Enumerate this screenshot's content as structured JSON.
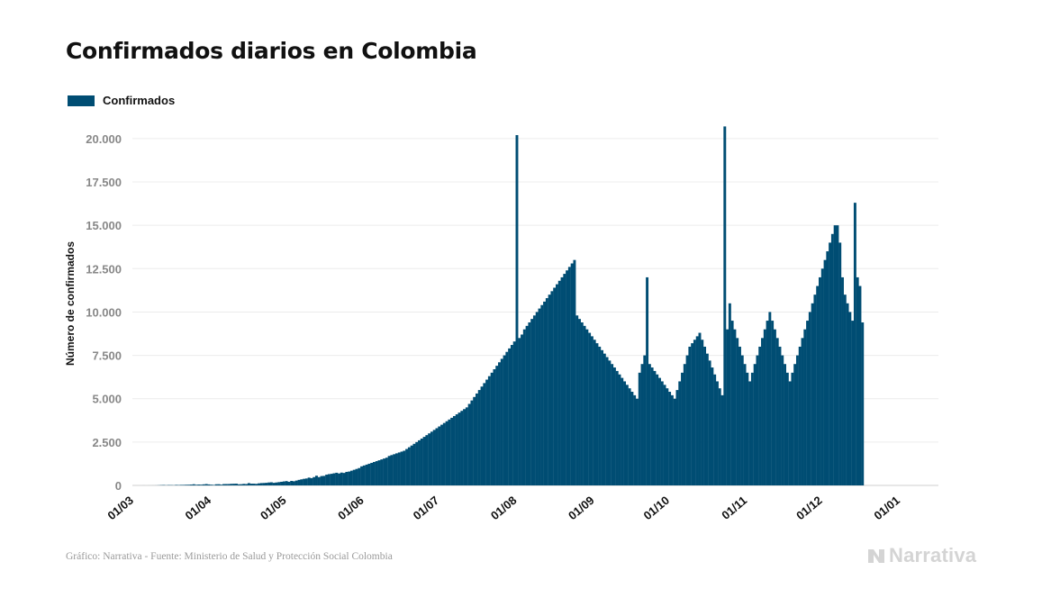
{
  "chart_data": {
    "type": "bar",
    "title": "Confirmados diarios en Colombia",
    "ylabel": "Número de confirmados",
    "xlabel": "",
    "ylim": [
      0,
      21500
    ],
    "yticks": [
      0,
      2500,
      5000,
      7500,
      10000,
      12500,
      15000,
      17500,
      20000
    ],
    "ytick_labels": [
      "0",
      "2.500",
      "5.000",
      "7.500",
      "10.000",
      "12.500",
      "15.000",
      "17.500",
      "20.000"
    ],
    "xtick_labels": [
      "01/03",
      "01/04",
      "01/05",
      "01/06",
      "01/07",
      "01/08",
      "01/09",
      "01/10",
      "01/11",
      "01/12",
      "01/01"
    ],
    "xtick_day_index": [
      0,
      31,
      61,
      92,
      122,
      153,
      184,
      214,
      245,
      275,
      306
    ],
    "x_start": "01/03",
    "series": [
      {
        "name": "Confirmados",
        "color": "#004d73",
        "values": [
          0,
          0,
          0,
          0,
          1,
          0,
          1,
          1,
          2,
          3,
          9,
          16,
          22,
          11,
          20,
          18,
          12,
          28,
          20,
          29,
          30,
          37,
          40,
          48,
          67,
          39,
          51,
          44,
          61,
          78,
          57,
          42,
          30,
          65,
          68,
          44,
          77,
          79,
          80,
          91,
          96,
          100,
          65,
          71,
          89,
          79,
          133,
          100,
          100,
          90,
          120,
          135,
          140,
          150,
          170,
          180,
          150,
          170,
          190,
          210,
          230,
          250,
          210,
          260,
          240,
          280,
          320,
          350,
          380,
          400,
          450,
          420,
          480,
          560,
          480,
          540,
          550,
          620,
          650,
          670,
          700,
          730,
          690,
          740,
          720,
          780,
          800,
          850,
          900,
          950,
          1000,
          1100,
          1150,
          1200,
          1250,
          1300,
          1350,
          1400,
          1450,
          1500,
          1550,
          1600,
          1700,
          1750,
          1800,
          1850,
          1900,
          1950,
          2000,
          2100,
          2200,
          2300,
          2400,
          2500,
          2600,
          2700,
          2800,
          2900,
          3000,
          3100,
          3200,
          3300,
          3400,
          3500,
          3600,
          3700,
          3800,
          3900,
          4000,
          4100,
          4200,
          4300,
          4400,
          4500,
          4700,
          4900,
          5100,
          5300,
          5500,
          5700,
          5900,
          6100,
          6300,
          6500,
          6700,
          6900,
          7100,
          7300,
          7500,
          7700,
          7900,
          8100,
          8300,
          20200,
          8500,
          8700,
          9000,
          9200,
          9400,
          9600,
          9800,
          10000,
          10200,
          10400,
          10600,
          10800,
          11000,
          11200,
          11400,
          11600,
          11800,
          12000,
          12200,
          12400,
          12600,
          12800,
          13000,
          9800,
          9600,
          9400,
          9200,
          9000,
          8800,
          8600,
          8400,
          8200,
          8000,
          7800,
          7600,
          7400,
          7200,
          7000,
          6800,
          6600,
          6400,
          6200,
          6000,
          5800,
          5600,
          5400,
          5200,
          5000,
          6500,
          7000,
          7500,
          12000,
          7000,
          6800,
          6600,
          6400,
          6200,
          6000,
          5800,
          5600,
          5400,
          5200,
          5000,
          5500,
          6000,
          6500,
          7000,
          7500,
          8000,
          8200,
          8400,
          8600,
          8800,
          8400,
          8000,
          7600,
          7200,
          6800,
          6400,
          6000,
          5600,
          5200,
          20700,
          9000,
          10500,
          9500,
          9000,
          8500,
          8000,
          7500,
          7000,
          6500,
          6000,
          6500,
          7000,
          7500,
          8000,
          8500,
          9000,
          9500,
          10000,
          9500,
          9000,
          8500,
          8000,
          7500,
          7000,
          6500,
          6000,
          6500,
          7000,
          7500,
          8000,
          8500,
          9000,
          9500,
          10000,
          10500,
          11000,
          11500,
          12000,
          12500,
          13000,
          13500,
          14000,
          14500,
          15000,
          15000,
          14000,
          12000,
          11000,
          10500,
          10000,
          9500,
          16300,
          12000,
          11500,
          9400
        ]
      }
    ],
    "legend_position": "top-left",
    "grid": true
  },
  "legend": {
    "label": "Confirmados",
    "color": "#004d73"
  },
  "footer": {
    "source": "Gráfico: Narrativa - Fuente: Ministerio de Salud y Protección Social Colombia"
  },
  "logo": {
    "text": "Narrativa",
    "icon": "narrativa-logo-icon"
  }
}
